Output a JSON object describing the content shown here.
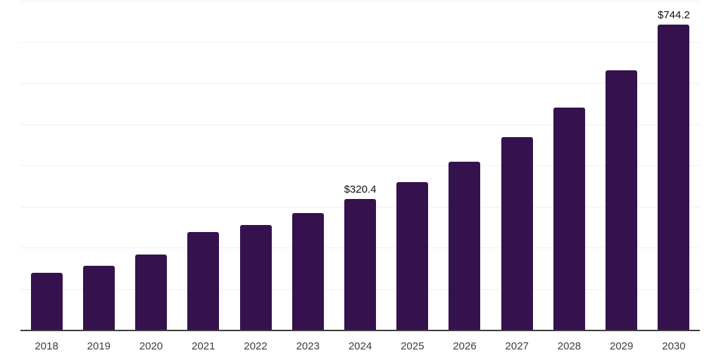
{
  "chart_data": {
    "type": "bar",
    "title": "",
    "categories": [
      "2018",
      "2019",
      "2020",
      "2021",
      "2022",
      "2023",
      "2024",
      "2025",
      "2026",
      "2027",
      "2028",
      "2029",
      "2030"
    ],
    "values": [
      140.5,
      157.5,
      184.9,
      239.8,
      257.0,
      285.9,
      320.4,
      361.0,
      410.5,
      470.3,
      542.2,
      633.0,
      744.2
    ],
    "value_labels": [
      "",
      "",
      "",
      "",
      "",
      "",
      "$320.4",
      "",
      "",
      "",
      "",
      "",
      "$744.2"
    ],
    "xlabel": "",
    "ylabel": "",
    "ylim": [
      0,
      800
    ],
    "grid_step": 100,
    "grid": "horizontal",
    "y_axis_ticks": "hidden",
    "legend": "none"
  },
  "colors": {
    "bar": "#35124e",
    "gridline": "#f0f0f0",
    "axis_line": "#3d3d3d",
    "tick_label": "#3d3d3d",
    "value_label": "#111111",
    "background": "#ffffff"
  }
}
